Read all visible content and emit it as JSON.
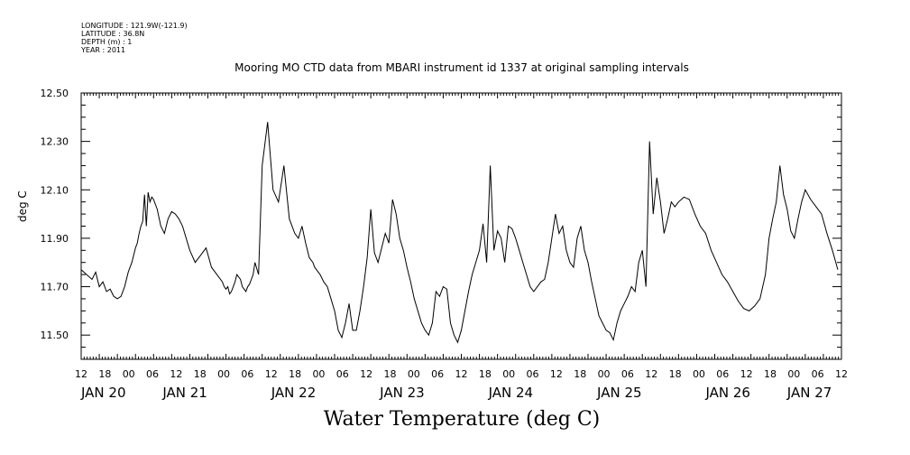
{
  "header": {
    "longitude": "LONGITUDE : 121.9W(-121.9)",
    "latitude": "LATITUDE : 36.8N",
    "depth": "DEPTH (m) : 1",
    "year": "YEAR : 2011"
  },
  "chart_data": {
    "type": "line",
    "title": "Mooring MO CTD data from MBARI instrument id 1337 at original sampling intervals",
    "xlabel": "Water Temperature (deg C)",
    "ylabel": "deg C",
    "ylim": [
      11.4,
      12.5
    ],
    "yticks": [
      11.5,
      11.7,
      11.9,
      12.1,
      12.3,
      12.5
    ],
    "ytick_labels": [
      "11.50",
      "11.70",
      "11.90",
      "12.10",
      "12.30",
      "12.50"
    ],
    "xlim": [
      0,
      42
    ],
    "hour_tick_labels": [
      "12",
      "18",
      "00",
      "06",
      "12",
      "18",
      "00",
      "06",
      "12",
      "18",
      "00",
      "06",
      "12",
      "18",
      "00",
      "06",
      "12",
      "18",
      "00",
      "06",
      "12",
      "18",
      "00",
      "06",
      "12",
      "18",
      "00",
      "06",
      "12",
      "18",
      "00",
      "06",
      "12"
    ],
    "date_labels": [
      {
        "label": "JAN 20",
        "x": 0
      },
      {
        "label": "JAN 21",
        "x": 4.5
      },
      {
        "label": "JAN 22",
        "x": 10.5
      },
      {
        "label": "JAN 23",
        "x": 16.5
      },
      {
        "label": "JAN 24",
        "x": 22.5
      },
      {
        "label": "JAN 25",
        "x": 28.5
      },
      {
        "label": "JAN 26",
        "x": 34.5
      },
      {
        "label": "JAN 27",
        "x": 39
      }
    ],
    "series": [
      {
        "color": "#000000",
        "x": [
          0,
          0.3,
          0.6,
          0.8,
          1.0,
          1.2,
          1.4,
          1.6,
          1.8,
          2.0,
          2.2,
          2.4,
          2.6,
          2.8,
          2.9,
          3.0,
          3.1,
          3.2,
          3.3,
          3.4,
          3.5,
          3.6,
          3.7,
          3.8,
          3.9,
          4.0,
          4.2,
          4.4,
          4.6,
          4.8,
          5.0,
          5.2,
          5.4,
          5.6,
          5.8,
          6.0,
          6.3,
          6.6,
          6.9,
          7.2,
          7.5,
          7.8,
          7.9,
          8.0,
          8.1,
          8.2,
          8.3,
          8.4,
          8.5,
          8.6,
          8.7,
          8.8,
          8.9,
          9.0,
          9.1,
          9.2,
          9.3,
          9.4,
          9.5,
          9.6,
          9.8,
          10.0,
          10.3,
          10.6,
          10.9,
          11.2,
          11.5,
          11.8,
          12.0,
          12.2,
          12.4,
          12.6,
          12.8,
          12.9,
          13.0,
          13.2,
          13.4,
          13.6,
          13.8,
          14.0,
          14.2,
          14.4,
          14.6,
          14.8,
          15.0,
          15.2,
          15.4,
          15.6,
          15.8,
          16.0,
          16.2,
          16.4,
          16.6,
          16.8,
          17.0,
          17.2,
          17.4,
          17.6,
          17.8,
          18.0,
          18.2,
          18.4,
          18.6,
          18.8,
          19.0,
          19.2,
          19.4,
          19.6,
          19.8,
          20.0,
          20.2,
          20.4,
          20.6,
          20.8,
          21.0,
          21.2,
          21.4,
          21.6,
          21.8,
          22.0,
          22.2,
          22.4,
          22.6,
          22.8,
          23.0,
          23.2,
          23.4,
          23.6,
          23.8,
          24.0,
          24.2,
          24.4,
          24.6,
          24.8,
          25.0,
          25.2,
          25.4,
          25.6,
          25.8,
          26.0,
          26.2,
          26.4,
          26.6,
          26.8,
          27.0,
          27.2,
          27.4,
          27.6,
          27.8,
          28.0,
          28.2,
          28.4,
          28.6,
          28.8,
          29.0,
          29.2,
          29.4,
          29.6,
          29.8,
          30.0,
          30.2,
          30.4,
          30.6,
          30.8,
          31.0,
          31.2,
          31.4,
          31.6,
          31.8,
          32.0,
          32.2,
          32.4,
          32.6,
          32.8,
          33.0,
          33.3,
          33.6,
          33.9,
          34.2,
          34.5,
          34.8,
          35.1,
          35.4,
          35.7,
          36.0,
          36.3,
          36.6,
          36.9,
          37.2,
          37.5,
          37.8,
          38.0,
          38.2,
          38.4,
          38.6,
          38.8,
          39.0,
          39.2,
          39.4,
          39.6,
          39.8,
          40.0,
          40.3,
          40.6,
          40.9,
          41.2,
          41.5,
          41.8
        ],
        "y": [
          11.77,
          11.75,
          11.73,
          11.76,
          11.7,
          11.72,
          11.68,
          11.69,
          11.66,
          11.65,
          11.66,
          11.7,
          11.76,
          11.8,
          11.83,
          11.86,
          11.88,
          11.92,
          11.95,
          11.97,
          12.08,
          11.95,
          12.09,
          12.05,
          12.07,
          12.06,
          12.02,
          11.95,
          11.92,
          11.98,
          12.01,
          12.0,
          11.98,
          11.95,
          11.9,
          11.85,
          11.8,
          11.83,
          11.86,
          11.78,
          11.75,
          11.72,
          11.7,
          11.69,
          11.7,
          11.67,
          11.68,
          11.7,
          11.72,
          11.75,
          11.74,
          11.73,
          11.7,
          11.69,
          11.68,
          11.7,
          11.71,
          11.73,
          11.75,
          11.8,
          11.75,
          12.2,
          12.38,
          12.1,
          12.05,
          12.2,
          11.98,
          11.92,
          11.9,
          11.95,
          11.88,
          11.82,
          11.8,
          11.78,
          11.77,
          11.75,
          11.72,
          11.7,
          11.65,
          11.6,
          11.52,
          11.49,
          11.55,
          11.63,
          11.52,
          11.52,
          11.6,
          11.7,
          11.82,
          12.02,
          11.84,
          11.8,
          11.86,
          11.92,
          11.88,
          12.06,
          12.0,
          11.9,
          11.85,
          11.78,
          11.72,
          11.65,
          11.6,
          11.55,
          11.52,
          11.5,
          11.55,
          11.68,
          11.66,
          11.7,
          11.69,
          11.55,
          11.5,
          11.47,
          11.52,
          11.6,
          11.68,
          11.75,
          11.8,
          11.85,
          11.96,
          11.8,
          12.2,
          11.85,
          11.93,
          11.9,
          11.8,
          11.95,
          11.94,
          11.9,
          11.85,
          11.8,
          11.75,
          11.7,
          11.68,
          11.7,
          11.72,
          11.73,
          11.8,
          11.9,
          12.0,
          11.92,
          11.95,
          11.85,
          11.8,
          11.78,
          11.9,
          11.95,
          11.85,
          11.8,
          11.72,
          11.65,
          11.58,
          11.55,
          11.52,
          11.51,
          11.48,
          11.55,
          11.6,
          11.63,
          11.66,
          11.7,
          11.68,
          11.8,
          11.85,
          11.7,
          12.3,
          12.0,
          12.15,
          12.05,
          11.92,
          11.98,
          12.05,
          12.03,
          12.05,
          12.07,
          12.06,
          12.0,
          11.95,
          11.92,
          11.85,
          11.8,
          11.75,
          11.72,
          11.68,
          11.64,
          11.61,
          11.6,
          11.62,
          11.65,
          11.75,
          11.9,
          11.98,
          12.05,
          12.2,
          12.08,
          12.02,
          11.93,
          11.9,
          11.98,
          12.05,
          12.1,
          12.06,
          12.03,
          12.0,
          11.92,
          11.85,
          11.77
        ]
      }
    ]
  }
}
